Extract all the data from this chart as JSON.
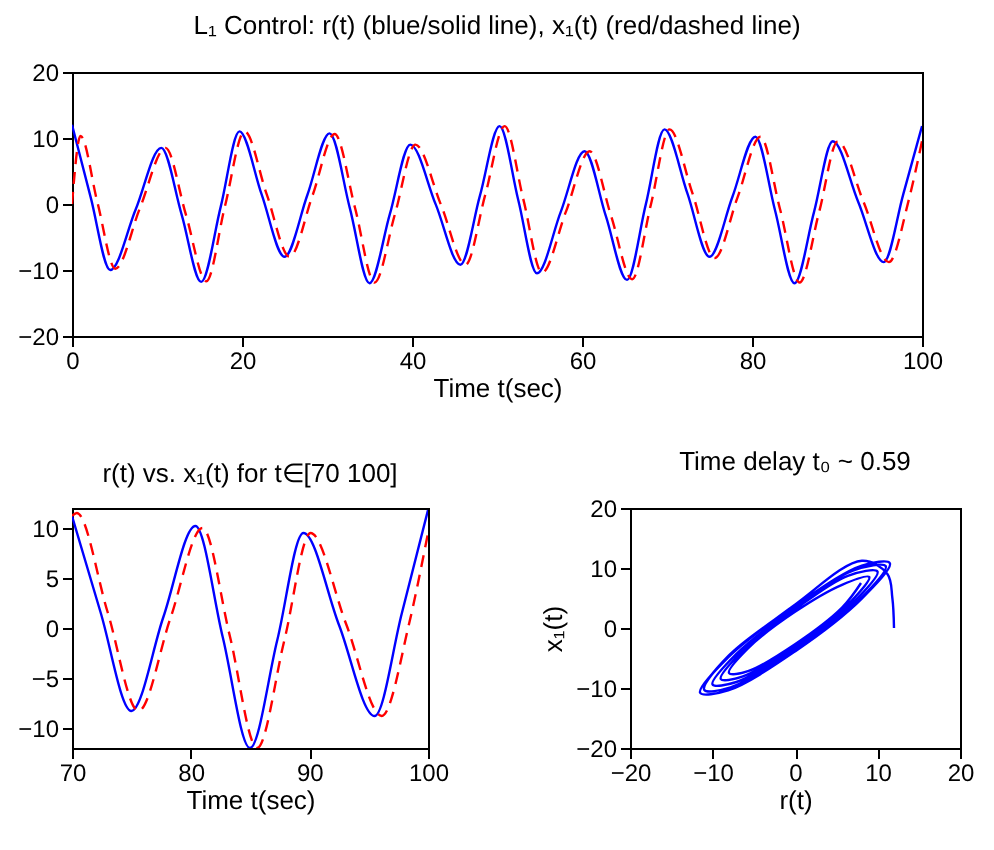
{
  "chart_data": [
    {
      "type": "line",
      "title": "L₁ Control: r(t) (blue/solid line), x₁(t) (red/dashed line)",
      "xlabel": "Time t(sec)",
      "xlim": [
        0,
        100
      ],
      "xticks": [
        0,
        20,
        40,
        60,
        80,
        100
      ],
      "ylim": [
        -20,
        20
      ],
      "yticks": [
        -20,
        -10,
        0,
        10,
        20
      ],
      "series": [
        {
          "color": "#0000ff",
          "line_style": "solid",
          "x": [
            0,
            2.2,
            4.5,
            7.5,
            10.5,
            12.9,
            15.2,
            17.5,
            19.7,
            22.3,
            25,
            27.7,
            30.3,
            32.7,
            35,
            37.4,
            39.8,
            42.8,
            45.7,
            48,
            50.3,
            52.5,
            54.7,
            57.5,
            60.3,
            62.8,
            65.3,
            67.5,
            69.7,
            72.4,
            75,
            77.7,
            80.4,
            82.7,
            85,
            87.3,
            89.5,
            92.5,
            95.5,
            97.8,
            100
          ],
          "values": [
            12,
            1,
            -10,
            -0.8,
            8.5,
            -1.6,
            -11.8,
            -0.4,
            11,
            1.5,
            -8,
            1.4,
            10.7,
            -0.7,
            -12,
            -1.5,
            9,
            -0.1,
            -9.2,
            1.3,
            11.8,
            0.6,
            -10.5,
            -1.2,
            8,
            -1.8,
            -11.5,
            -0.1,
            11.3,
            1.6,
            -8,
            1.1,
            10.2,
            -0.9,
            -12,
            -1.2,
            9.5,
            0.3,
            -8.8,
            1.5,
            11.8
          ]
        },
        {
          "color": "#ff0000",
          "line_style": "dashed",
          "x": [
            0,
            1,
            3,
            5.1,
            8,
            11,
            13.4,
            15.8,
            18,
            20.3,
            22.9,
            25.6,
            28.3,
            30.9,
            33.3,
            35.6,
            38,
            40.4,
            43.4,
            46.3,
            48.6,
            50.9,
            53.1,
            55.3,
            58.1,
            60.9,
            63.4,
            65.9,
            68.1,
            70.3,
            73,
            75.6,
            78.3,
            81,
            83.3,
            85.6,
            87.9,
            90.1,
            93.1,
            96.1,
            98.4,
            100
          ],
          "values": [
            0,
            10.3,
            0.2,
            -9.8,
            -0.6,
            8.5,
            -1.6,
            -11.7,
            -0.3,
            11,
            1.5,
            -8,
            1.3,
            10.6,
            -0.6,
            -11.9,
            -1.5,
            9,
            -0.1,
            -9.2,
            1.3,
            11.8,
            0.7,
            -10.4,
            -1.2,
            8,
            -1.7,
            -11.4,
            -0.1,
            11.3,
            1.6,
            -8.2,
            1,
            10.2,
            -0.8,
            -11.9,
            -1.2,
            9.5,
            0.4,
            -8.8,
            0.4,
            9.5
          ]
        }
      ]
    },
    {
      "type": "line",
      "title": "r(t) vs. x₁(t) for t∈[70 100]",
      "xlabel": "Time t(sec)",
      "xlim": [
        70,
        100
      ],
      "xticks": [
        70,
        80,
        90,
        100
      ],
      "ylim": [
        -12,
        12
      ],
      "yticks": [
        -10,
        -5,
        0,
        5,
        10
      ],
      "series": [
        {
          "color": "#0000ff",
          "line_style": "solid",
          "x": [
            70,
            72.4,
            75,
            77.7,
            80.4,
            82.7,
            85,
            87.3,
            89.5,
            92.5,
            95.5,
            97.8,
            100
          ],
          "values": [
            11.2,
            1.6,
            -8.3,
            1.1,
            10.2,
            -0.9,
            -12,
            -1.2,
            9.5,
            0.3,
            -8.8,
            1.5,
            11.8
          ]
        },
        {
          "color": "#ff0000",
          "line_style": "dashed",
          "x": [
            70,
            70.4,
            73,
            75.6,
            78.3,
            81,
            83.3,
            85.6,
            87.9,
            90.1,
            93.1,
            96.1,
            98.4,
            100
          ],
          "values": [
            11.2,
            11.5,
            1.6,
            -8.3,
            1,
            10,
            -0.8,
            -12,
            -1.2,
            9.5,
            0.4,
            -8.8,
            0.4,
            9.5
          ]
        }
      ]
    },
    {
      "type": "line",
      "title": "Time delay t₀ ~ 0.59",
      "xlabel": "r(t)",
      "ylabel": "x₁(t)",
      "xlim": [
        -20,
        20
      ],
      "xticks": [
        -20,
        -10,
        0,
        10,
        20
      ],
      "ylim": [
        -20,
        20
      ],
      "yticks": [
        -20,
        -10,
        0,
        10,
        20
      ],
      "series": [
        {
          "color": "#0000ff",
          "line_style": "solid",
          "x": [
            12,
            11.8,
            11.2,
            8.1,
            0,
            -8.1,
            -11.5,
            -8.1,
            0,
            8.1,
            11.5,
            8.1,
            0,
            -8.1,
            -11,
            -7.8,
            0,
            7.8,
            11,
            7.1,
            0,
            -7.1,
            -10,
            -7.1,
            0,
            7.1,
            10,
            6.4,
            0,
            -6.4,
            -9,
            -6.4,
            0,
            6.4,
            9,
            5.7,
            0,
            -5.7,
            -8,
            -5.7,
            0,
            5.7,
            8
          ],
          "values": [
            0,
            5,
            9,
            11.2,
            3.9,
            -4.9,
            -10.8,
            -10.4,
            -3.9,
            4.9,
            10.8,
            10.4,
            3.7,
            -4.7,
            -10.3,
            -9.9,
            -3.7,
            4.7,
            10.3,
            9.6,
            3.4,
            -4.3,
            -9.4,
            -9,
            -3.4,
            4.3,
            9.4,
            8.7,
            3.1,
            -3.9,
            -8.5,
            -8.1,
            -3.1,
            3.9,
            8.5,
            7.2,
            2.7,
            -3.4,
            -7.5,
            -7.2,
            -2.7,
            3.4,
            7.5
          ]
        }
      ]
    }
  ]
}
